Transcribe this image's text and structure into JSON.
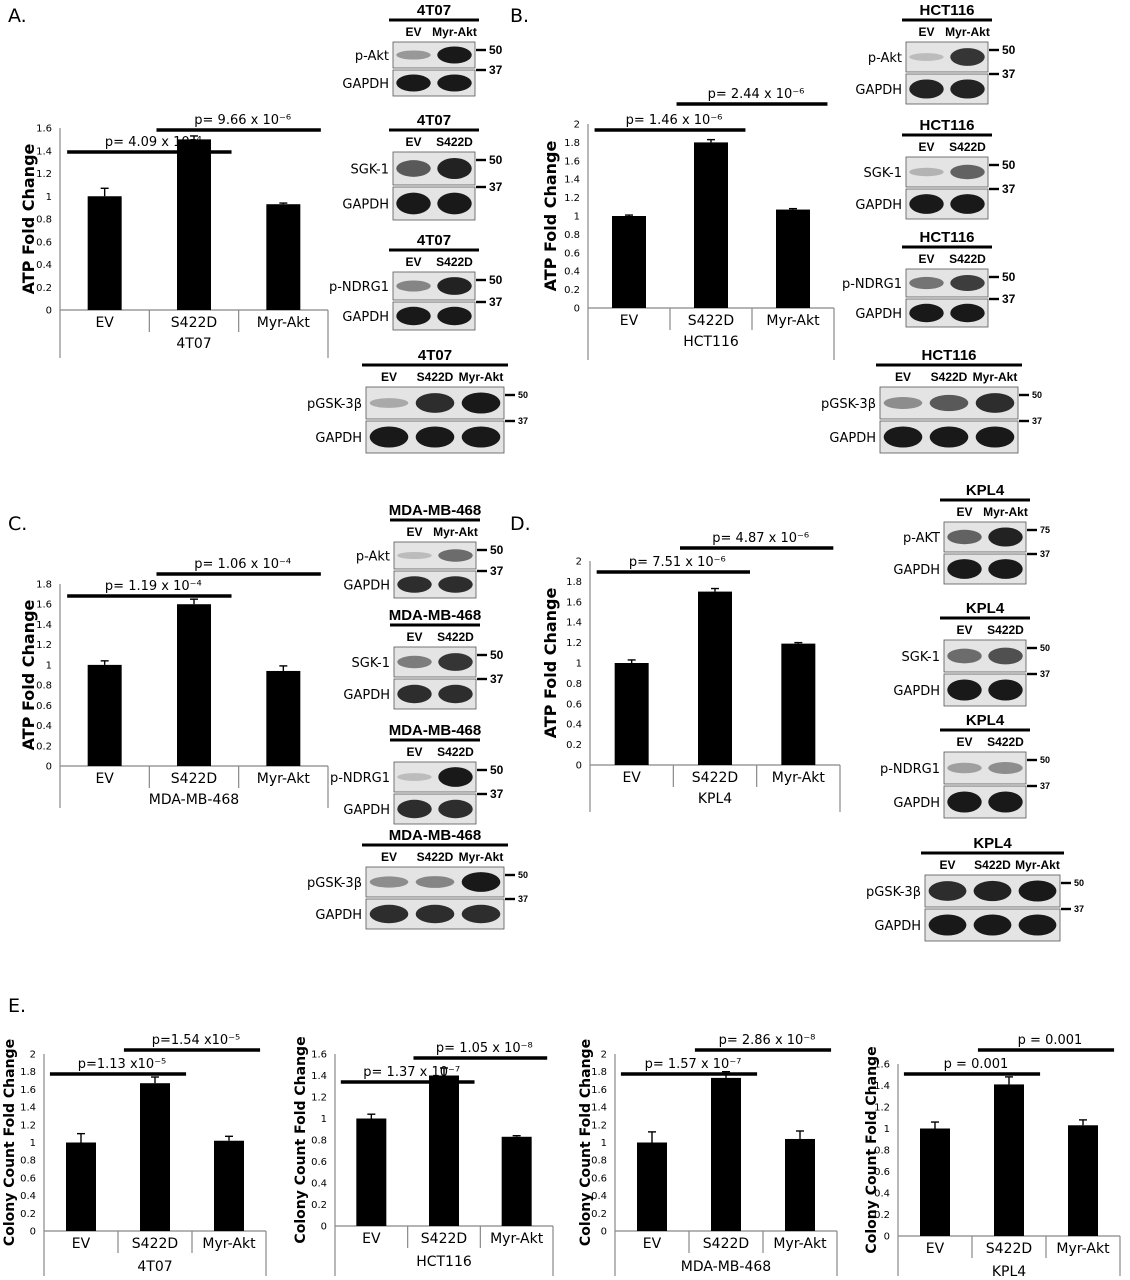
{
  "panels": {
    "A": "A.",
    "B": "B.",
    "C": "C.",
    "D": "D.",
    "E": "E."
  },
  "chart_data": [
    {
      "id": "A",
      "type": "bar",
      "categories": [
        "EV",
        "S422D",
        "Myr-Akt"
      ],
      "values": [
        1.0,
        1.5,
        0.93
      ],
      "errors": [
        0.07,
        0.03,
        0.01
      ],
      "ylabel": "ATP Fold Change",
      "xlabel": "4T07",
      "ylim": [
        0,
        1.6
      ],
      "yticks": [
        "0",
        "0.2",
        "0.4",
        "0.6",
        "0.8",
        "1",
        "1.2",
        "1.4",
        "1.6"
      ],
      "pvalues": [
        {
          "text": "p= 4.09 x 10⁻⁴",
          "from": 0,
          "to": 1
        },
        {
          "text": "p= 9.66 x 10⁻⁶",
          "from": 1,
          "to": 2
        }
      ]
    },
    {
      "id": "B",
      "type": "bar",
      "categories": [
        "EV",
        "S422D",
        "Myr-Akt"
      ],
      "values": [
        1.0,
        1.8,
        1.07
      ],
      "errors": [
        0.01,
        0.03,
        0.01
      ],
      "ylabel": "ATP Fold Change",
      "xlabel": "HCT116",
      "ylim": [
        0,
        2
      ],
      "yticks": [
        "0",
        "0.2",
        "0.4",
        "0.6",
        "0.8",
        "1",
        "1.2",
        "1.4",
        "1.6",
        "1.8",
        "2"
      ],
      "pvalues": [
        {
          "text": "p= 1.46 x 10⁻⁶",
          "from": 0,
          "to": 1
        },
        {
          "text": "p= 2.44 x 10⁻⁶",
          "from": 1,
          "to": 2
        }
      ]
    },
    {
      "id": "C",
      "type": "bar",
      "categories": [
        "EV",
        "S422D",
        "Myr-Akt"
      ],
      "values": [
        1.0,
        1.6,
        0.94
      ],
      "errors": [
        0.04,
        0.05,
        0.05
      ],
      "ylabel": "ATP Fold Change",
      "xlabel": "MDA-MB-468",
      "ylim": [
        0,
        1.8
      ],
      "yticks": [
        "0",
        "0.2",
        "0.4",
        "0.6",
        "0.8",
        "1",
        "1.2",
        "1.4",
        "1.6",
        "1.8"
      ],
      "pvalues": [
        {
          "text": "p= 1.19 x 10⁻⁴",
          "from": 0,
          "to": 1
        },
        {
          "text": "p= 1.06 x 10⁻⁴",
          "from": 1,
          "to": 2
        }
      ]
    },
    {
      "id": "D",
      "type": "bar",
      "categories": [
        "EV",
        "S422D",
        "Myr-Akt"
      ],
      "values": [
        1.0,
        1.7,
        1.19
      ],
      "errors": [
        0.03,
        0.03,
        0.01
      ],
      "ylabel": "ATP Fold Change",
      "xlabel": "KPL4",
      "ylim": [
        0,
        2
      ],
      "yticks": [
        "0",
        "0.2",
        "0.4",
        "0.6",
        "0.8",
        "1",
        "1.2",
        "1.4",
        "1.6",
        "1.8",
        "2"
      ],
      "pvalues": [
        {
          "text": "p= 7.51 x 10⁻⁶",
          "from": 0,
          "to": 1
        },
        {
          "text": "p= 4.87 x 10⁻⁶",
          "from": 1,
          "to": 2
        }
      ]
    },
    {
      "id": "E1",
      "type": "bar",
      "categories": [
        "EV",
        "S422D",
        "Myr-Akt"
      ],
      "values": [
        1.0,
        1.67,
        1.02
      ],
      "errors": [
        0.1,
        0.07,
        0.05
      ],
      "ylabel": "Colony Count Fold Change",
      "xlabel": "4T07",
      "ylim": [
        0,
        2
      ],
      "yticks": [
        "0",
        "0.2",
        "0.4",
        "0.6",
        "0.8",
        "1",
        "1.2",
        "1.4",
        "1.6",
        "1.8",
        "2"
      ],
      "pvalues": [
        {
          "text": "p=1.13 x10⁻⁵",
          "from": 0,
          "to": 1
        },
        {
          "text": "p=1.54 x10⁻⁵",
          "from": 1,
          "to": 2
        }
      ]
    },
    {
      "id": "E2",
      "type": "bar",
      "categories": [
        "EV",
        "S422D",
        "Myr-Akt"
      ],
      "values": [
        1.0,
        1.4,
        0.83
      ],
      "errors": [
        0.04,
        0.07,
        0.01
      ],
      "ylabel": "Colony Count Fold Change",
      "xlabel": "HCT116",
      "ylim": [
        0,
        1.6
      ],
      "yticks": [
        "0",
        "0.2",
        "0.4",
        "0.6",
        "0.8",
        "1",
        "1.2",
        "1.4",
        "1.6"
      ],
      "pvalues": [
        {
          "text": "p= 1.37 x 10⁻⁷",
          "from": 0,
          "to": 1
        },
        {
          "text": "p= 1.05 x 10⁻⁸",
          "from": 1,
          "to": 2
        }
      ]
    },
    {
      "id": "E3",
      "type": "bar",
      "categories": [
        "EV",
        "S422D",
        "Myr-Akt"
      ],
      "values": [
        1.0,
        1.73,
        1.04
      ],
      "errors": [
        0.12,
        0.07,
        0.09
      ],
      "ylabel": "Colony Count Fold Change",
      "xlabel": "MDA-MB-468",
      "ylim": [
        0,
        2
      ],
      "yticks": [
        "0",
        "0.2",
        "0.4",
        "0.6",
        "0.8",
        "1",
        "1.2",
        "1.4",
        "1.6",
        "1.8",
        "2"
      ],
      "pvalues": [
        {
          "text": "p= 1.57 x 10⁻⁷",
          "from": 0,
          "to": 1
        },
        {
          "text": "p= 2.86 x 10⁻⁸",
          "from": 1,
          "to": 2
        }
      ]
    },
    {
      "id": "E4",
      "type": "bar",
      "categories": [
        "EV",
        "S422D",
        "Myr-Akt"
      ],
      "values": [
        1.0,
        1.41,
        1.03
      ],
      "errors": [
        0.06,
        0.07,
        0.05
      ],
      "ylabel": "Colony Count Fold Change",
      "xlabel": "KPL4",
      "ylim": [
        0,
        1.6
      ],
      "yticks": [
        "0",
        "0.2",
        "0.4",
        "0.6",
        "0.8",
        "1",
        "1.2",
        "1.4",
        "1.6"
      ],
      "pvalues": [
        {
          "text": "p = 0.001",
          "from": 0,
          "to": 1
        },
        {
          "text": "p = 0.001",
          "from": 1,
          "to": 2
        }
      ]
    }
  ],
  "blots": [
    {
      "id": "A1",
      "title": "4T07",
      "lanes": [
        "EV",
        "Myr-Akt"
      ],
      "rows": [
        {
          "label": "p-Akt",
          "bands": [
            0.25,
            0.95
          ]
        },
        {
          "label": "GAPDH",
          "bands": [
            0.95,
            0.95
          ]
        }
      ],
      "markers": [
        "50",
        "37"
      ]
    },
    {
      "id": "A2",
      "title": "4T07",
      "lanes": [
        "EV",
        "S422D"
      ],
      "rows": [
        {
          "label": "SGK-1",
          "bands": [
            0.6,
            0.9
          ]
        },
        {
          "label": "GAPDH",
          "bands": [
            0.95,
            0.95
          ]
        }
      ],
      "markers": [
        "50",
        "37"
      ]
    },
    {
      "id": "A3",
      "title": "4T07",
      "lanes": [
        "EV",
        "S422D"
      ],
      "rows": [
        {
          "label": "p-NDRG1",
          "bands": [
            0.35,
            0.9
          ]
        },
        {
          "label": "GAPDH",
          "bands": [
            0.95,
            0.95
          ]
        }
      ],
      "markers": [
        "50",
        "37"
      ]
    },
    {
      "id": "A4",
      "title": "4T07",
      "lanes": [
        "EV",
        "S422D",
        "Myr-Akt"
      ],
      "rows": [
        {
          "label": "pGSK-3β",
          "bands": [
            0.15,
            0.85,
            0.95
          ]
        },
        {
          "label": "GAPDH",
          "bands": [
            0.95,
            0.95,
            0.95
          ]
        }
      ],
      "markers": [
        "50",
        "37"
      ]
    },
    {
      "id": "B1",
      "title": "HCT116",
      "lanes": [
        "EV",
        "Myr-Akt"
      ],
      "rows": [
        {
          "label": "p-Akt",
          "bands": [
            0.05,
            0.8
          ]
        },
        {
          "label": "GAPDH",
          "bands": [
            0.9,
            0.9
          ]
        }
      ],
      "markers": [
        "50",
        "37"
      ]
    },
    {
      "id": "B2",
      "title": "HCT116",
      "lanes": [
        "EV",
        "S422D"
      ],
      "rows": [
        {
          "label": "SGK-1",
          "bands": [
            0.1,
            0.55
          ]
        },
        {
          "label": "GAPDH",
          "bands": [
            0.95,
            0.95
          ]
        }
      ],
      "markers": [
        "50",
        "37"
      ]
    },
    {
      "id": "B3",
      "title": "HCT116",
      "lanes": [
        "EV",
        "S422D"
      ],
      "rows": [
        {
          "label": "p-NDRG1",
          "bands": [
            0.45,
            0.75
          ]
        },
        {
          "label": "GAPDH",
          "bands": [
            0.95,
            0.95
          ]
        }
      ],
      "markers": [
        "50",
        "37"
      ]
    },
    {
      "id": "B4",
      "title": "HCT116",
      "lanes": [
        "EV",
        "S422D",
        "Myr-Akt"
      ],
      "rows": [
        {
          "label": "pGSK-3β",
          "bands": [
            0.3,
            0.6,
            0.85
          ]
        },
        {
          "label": "GAPDH",
          "bands": [
            0.95,
            0.95,
            0.95
          ]
        }
      ],
      "markers": [
        "50",
        "37"
      ]
    },
    {
      "id": "C1",
      "title": "MDA-MB-468",
      "lanes": [
        "EV",
        "Myr-Akt"
      ],
      "rows": [
        {
          "label": "p-Akt",
          "bands": [
            0.05,
            0.5
          ]
        },
        {
          "label": "GAPDH",
          "bands": [
            0.85,
            0.85
          ]
        }
      ],
      "markers": [
        "50",
        "37"
      ]
    },
    {
      "id": "C2",
      "title": "MDA-MB-468",
      "lanes": [
        "EV",
        "S422D"
      ],
      "rows": [
        {
          "label": "SGK-1",
          "bands": [
            0.4,
            0.8
          ]
        },
        {
          "label": "GAPDH",
          "bands": [
            0.85,
            0.85
          ]
        }
      ],
      "markers": [
        "50",
        "37"
      ]
    },
    {
      "id": "C3",
      "title": "MDA-MB-468",
      "lanes": [
        "EV",
        "S422D"
      ],
      "rows": [
        {
          "label": "p-NDRG1",
          "bands": [
            0.05,
            0.95
          ]
        },
        {
          "label": "GAPDH",
          "bands": [
            0.85,
            0.85
          ]
        }
      ],
      "markers": [
        "50",
        "37"
      ]
    },
    {
      "id": "C4",
      "title": "MDA-MB-468",
      "lanes": [
        "EV",
        "S422D",
        "Myr-Akt"
      ],
      "rows": [
        {
          "label": "pGSK-3β",
          "bands": [
            0.3,
            0.35,
            0.95
          ]
        },
        {
          "label": "GAPDH",
          "bands": [
            0.85,
            0.85,
            0.85
          ]
        }
      ],
      "markers": [
        "50",
        "37"
      ]
    },
    {
      "id": "D1",
      "title": "KPL4",
      "lanes": [
        "EV",
        "Myr-Akt"
      ],
      "rows": [
        {
          "label": "p-AKT",
          "bands": [
            0.55,
            0.9
          ]
        },
        {
          "label": "GAPDH",
          "bands": [
            0.95,
            0.95
          ]
        }
      ],
      "markers": [
        "75",
        "37"
      ]
    },
    {
      "id": "D2",
      "title": "KPL4",
      "lanes": [
        "EV",
        "S422D"
      ],
      "rows": [
        {
          "label": "SGK-1",
          "bands": [
            0.5,
            0.65
          ]
        },
        {
          "label": "GAPDH",
          "bands": [
            0.95,
            0.95
          ]
        }
      ],
      "markers": [
        "50",
        "37"
      ]
    },
    {
      "id": "D3",
      "title": "KPL4",
      "lanes": [
        "EV",
        "S422D"
      ],
      "rows": [
        {
          "label": "p-NDRG1",
          "bands": [
            0.2,
            0.3
          ]
        },
        {
          "label": "GAPDH",
          "bands": [
            0.95,
            0.95
          ]
        }
      ],
      "markers": [
        "50",
        "37"
      ]
    },
    {
      "id": "D4",
      "title": "KPL4",
      "lanes": [
        "EV",
        "S422D",
        "Myr-Akt"
      ],
      "rows": [
        {
          "label": "pGSK-3β",
          "bands": [
            0.85,
            0.9,
            0.95
          ]
        },
        {
          "label": "GAPDH",
          "bands": [
            0.95,
            0.95,
            0.95
          ]
        }
      ],
      "markers": [
        "50",
        "37"
      ]
    }
  ],
  "colors": {
    "bar": "#000000",
    "axis": "#888888",
    "blot_bg": "#e4e4e4",
    "band": "#111111"
  }
}
